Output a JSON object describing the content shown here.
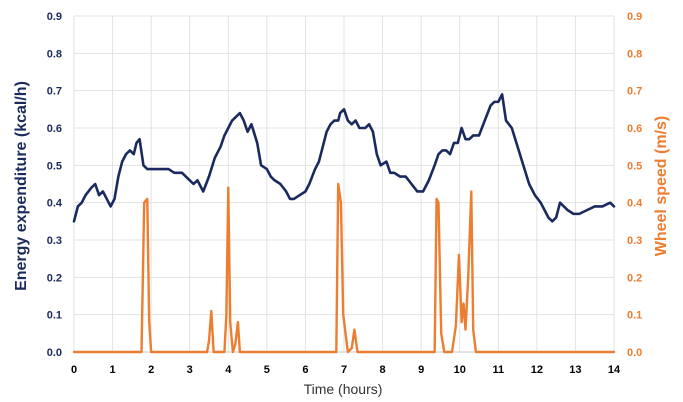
{
  "chart_data": {
    "type": "line",
    "xlabel": "Time (hours)",
    "ylabel_left": "Energy  expenditure (kcal/h)",
    "ylabel_right": "Wheel speed (m/s)",
    "xlim": [
      0,
      14
    ],
    "ylim_left": [
      0,
      0.9
    ],
    "ylim_right": [
      0,
      0.9
    ],
    "x_ticks": [
      "0",
      "1",
      "2",
      "3",
      "4",
      "5",
      "6",
      "7",
      "8",
      "9",
      "10",
      "11",
      "12",
      "13",
      "14"
    ],
    "y_ticks_left": [
      "0.0",
      "0.1",
      "0.2",
      "0.3",
      "0.4",
      "0.5",
      "0.6",
      "0.7",
      "0.8",
      "0.9"
    ],
    "y_ticks_right": [
      "0.0",
      "0.1",
      "0.2",
      "0.3",
      "0.4",
      "0.5",
      "0.6",
      "0.7",
      "0.8",
      "0.9"
    ],
    "grid": true,
    "colors": {
      "energy": "#1b2a5e",
      "wheel": "#ed7d31"
    },
    "series": [
      {
        "axis": "left",
        "x": [
          0,
          0.1,
          0.2,
          0.3,
          0.45,
          0.55,
          0.65,
          0.75,
          0.85,
          0.95,
          1.05,
          1.15,
          1.25,
          1.35,
          1.45,
          1.55,
          1.62,
          1.7,
          1.8,
          1.9,
          2.0,
          2.1,
          2.2,
          2.3,
          2.45,
          2.6,
          2.8,
          3.0,
          3.1,
          3.2,
          3.35,
          3.5,
          3.65,
          3.8,
          3.9,
          4.0,
          4.1,
          4.2,
          4.3,
          4.4,
          4.5,
          4.6,
          4.75,
          4.85,
          5.0,
          5.1,
          5.2,
          5.35,
          5.5,
          5.6,
          5.7,
          5.85,
          6.0,
          6.1,
          6.25,
          6.35,
          6.45,
          6.55,
          6.65,
          6.75,
          6.85,
          6.9,
          7.0,
          7.1,
          7.2,
          7.3,
          7.4,
          7.55,
          7.65,
          7.75,
          7.85,
          7.95,
          8.1,
          8.2,
          8.3,
          8.45,
          8.6,
          8.75,
          8.9,
          9.05,
          9.2,
          9.35,
          9.45,
          9.55,
          9.65,
          9.75,
          9.85,
          9.95,
          10.05,
          10.15,
          10.25,
          10.35,
          10.5,
          10.65,
          10.8,
          10.9,
          11.0,
          11.1,
          11.2,
          11.35,
          11.5,
          11.65,
          11.8,
          11.95,
          12.1,
          12.2,
          12.3,
          12.4,
          12.5,
          12.6,
          12.7,
          12.8,
          12.95,
          13.1,
          13.3,
          13.5,
          13.7,
          13.9,
          14.0
        ],
        "values": [
          0.35,
          0.39,
          0.4,
          0.42,
          0.44,
          0.45,
          0.42,
          0.43,
          0.41,
          0.39,
          0.41,
          0.47,
          0.51,
          0.53,
          0.54,
          0.53,
          0.56,
          0.57,
          0.5,
          0.49,
          0.49,
          0.49,
          0.49,
          0.49,
          0.49,
          0.48,
          0.48,
          0.46,
          0.45,
          0.46,
          0.43,
          0.47,
          0.52,
          0.55,
          0.58,
          0.6,
          0.62,
          0.63,
          0.64,
          0.62,
          0.59,
          0.61,
          0.56,
          0.5,
          0.49,
          0.47,
          0.46,
          0.45,
          0.43,
          0.41,
          0.41,
          0.42,
          0.43,
          0.45,
          0.49,
          0.51,
          0.55,
          0.59,
          0.61,
          0.62,
          0.62,
          0.64,
          0.65,
          0.62,
          0.61,
          0.62,
          0.6,
          0.6,
          0.61,
          0.59,
          0.53,
          0.5,
          0.51,
          0.48,
          0.48,
          0.47,
          0.47,
          0.45,
          0.43,
          0.43,
          0.46,
          0.5,
          0.53,
          0.54,
          0.54,
          0.53,
          0.56,
          0.56,
          0.6,
          0.57,
          0.57,
          0.58,
          0.58,
          0.62,
          0.66,
          0.67,
          0.67,
          0.69,
          0.62,
          0.6,
          0.55,
          0.5,
          0.45,
          0.42,
          0.4,
          0.38,
          0.36,
          0.35,
          0.36,
          0.4,
          0.39,
          0.38,
          0.37,
          0.37,
          0.38,
          0.39,
          0.39,
          0.4,
          0.39
        ]
      },
      {
        "axis": "right",
        "x": [
          0,
          1.75,
          1.82,
          1.9,
          1.95,
          2.0,
          3.45,
          3.5,
          3.56,
          3.62,
          3.9,
          3.95,
          4.0,
          4.05,
          4.12,
          4.18,
          4.25,
          4.3,
          4.38,
          6.8,
          6.85,
          6.92,
          6.98,
          7.1,
          7.2,
          7.27,
          7.35,
          9.35,
          9.4,
          9.45,
          9.52,
          9.6,
          9.8,
          9.9,
          9.98,
          10.05,
          10.1,
          10.15,
          10.22,
          10.3,
          10.35,
          10.42,
          10.48,
          14.0
        ],
        "values": [
          0,
          0,
          0.4,
          0.41,
          0.08,
          0,
          0,
          0.03,
          0.11,
          0,
          0,
          0.1,
          0.44,
          0.08,
          0,
          0.02,
          0.08,
          0,
          0,
          0,
          0.45,
          0.4,
          0.1,
          0,
          0.01,
          0.06,
          0,
          0,
          0.41,
          0.4,
          0.05,
          0,
          0,
          0.07,
          0.26,
          0.08,
          0.13,
          0.06,
          0.2,
          0.43,
          0.06,
          0,
          0,
          0
        ]
      }
    ]
  }
}
